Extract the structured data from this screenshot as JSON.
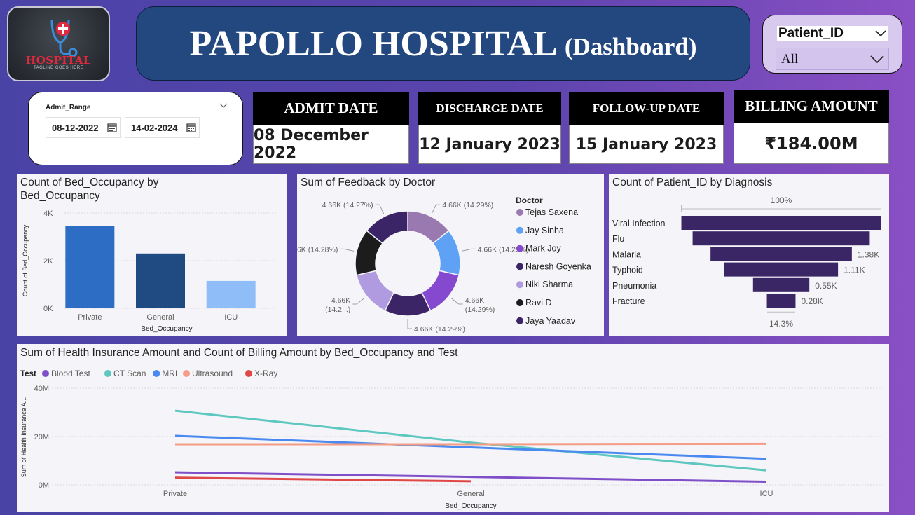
{
  "logo": {
    "word": "HOSPITAL",
    "tagline": "TAGLINE GOES HERE"
  },
  "title": {
    "main": "PAPOLLO HOSPITAL",
    "sub": "(Dashboard)"
  },
  "patient_slicer": {
    "label": "Patient_ID",
    "value": "All"
  },
  "date_slicer": {
    "label": "Admit_Range",
    "start": "08-12-2022",
    "end": "14-02-2024"
  },
  "kpis": [
    {
      "label": "ADMIT DATE",
      "value": "08 December 2022"
    },
    {
      "label": "DISCHARGE DATE",
      "value": "12 January 2023"
    },
    {
      "label": "FOLLOW-UP  DATE",
      "value": "15 January 2023"
    },
    {
      "label": "BILLING AMOUNT",
      "value": "₹184.00M"
    }
  ],
  "colors": {
    "bar_private": "#2e6dc4",
    "bar_general": "#1f4a82",
    "bar_icu": "#8fbdf7",
    "funnel": "#3b2665"
  },
  "chart_data": [
    {
      "type": "bar",
      "title": "Count of Bed_Occupancy by Bed_Occupancy",
      "title_line1": "Count of Bed_Occupancy by",
      "title_line2": "Bed_Occupancy",
      "xlabel": "Bed_Occupancy",
      "ylabel": "Count of Bed_Occupancy",
      "categories": [
        "Private",
        "General",
        "ICU"
      ],
      "values": [
        3450,
        2300,
        1150
      ],
      "ylim": [
        0,
        4000
      ],
      "yticks": [
        "0K",
        "2K",
        "4K"
      ]
    },
    {
      "type": "pie",
      "title": "Sum of Feedback by Doctor",
      "legend_title": "Doctor",
      "slices": [
        {
          "name": "Tejas Saxena",
          "label": "4.66K (14.29%)",
          "value": 4660,
          "color": "#9a79b0"
        },
        {
          "name": "Jay Sinha",
          "label": "4.66K (14.29%)",
          "value": 4660,
          "color": "#5fa2f5"
        },
        {
          "name": "Mark Joy",
          "label": "4.66K (14.29%)",
          "value": 4660,
          "color": "#8549cf"
        },
        {
          "name": "Naresh Goyenka",
          "label": "4.66K (14.29%)",
          "value": 4660,
          "color": "#3c2566"
        },
        {
          "name": "Niki Sharma",
          "label": "4.66K (14.2...)",
          "value": 4660,
          "color": "#b19be0"
        },
        {
          "name": "Ravi D",
          "label": "4.66K (14.28%)",
          "value": 4660,
          "color": "#1c1c1c"
        },
        {
          "name": "Jaya Yaadav",
          "label": "4.66K (14.27%)",
          "value": 4660,
          "color": "#3c2566"
        }
      ]
    },
    {
      "type": "bar",
      "subtype": "funnel",
      "title": "Count of Patient_ID by Diagnosis",
      "top_label": "100%",
      "bottom_label": "14.3%",
      "categories": [
        "Viral Infection",
        "Flu",
        "Malaria",
        "Typhoid",
        "Pneumonia",
        "Fracture"
      ],
      "values": [
        1950,
        1730,
        1380,
        1110,
        550,
        280
      ],
      "value_labels": [
        "",
        "",
        "1.38K",
        "1.11K",
        "0.55K",
        "0.28K"
      ]
    },
    {
      "type": "line",
      "title": "Sum of Health Insurance Amount and Count of Billing Amount by Bed_Occupancy and Test",
      "legend_title": "Test",
      "xlabel": "Bed_Occupancy",
      "ylabel": "Sum of Health Insurance A...",
      "categories": [
        "Private",
        "General",
        "ICU"
      ],
      "ylim": [
        0,
        40000000
      ],
      "yticks": [
        "0M",
        "20M",
        "40M"
      ],
      "series": [
        {
          "name": "Blood Test",
          "color": "#7f4fc8",
          "values": [
            5200000,
            3300000,
            1300000
          ]
        },
        {
          "name": "CT Scan",
          "color": "#5ec8c0",
          "values": [
            30700000,
            17500000,
            6000000
          ]
        },
        {
          "name": "MRI",
          "color": "#4a8af0",
          "values": [
            20300000,
            15500000,
            10800000
          ]
        },
        {
          "name": "Ultrasound",
          "color": "#f59c84",
          "values": [
            16800000,
            16800000,
            17000000
          ]
        },
        {
          "name": "X-Ray",
          "color": "#e04848",
          "values": [
            3000000,
            1500000,
            null
          ]
        }
      ]
    }
  ]
}
